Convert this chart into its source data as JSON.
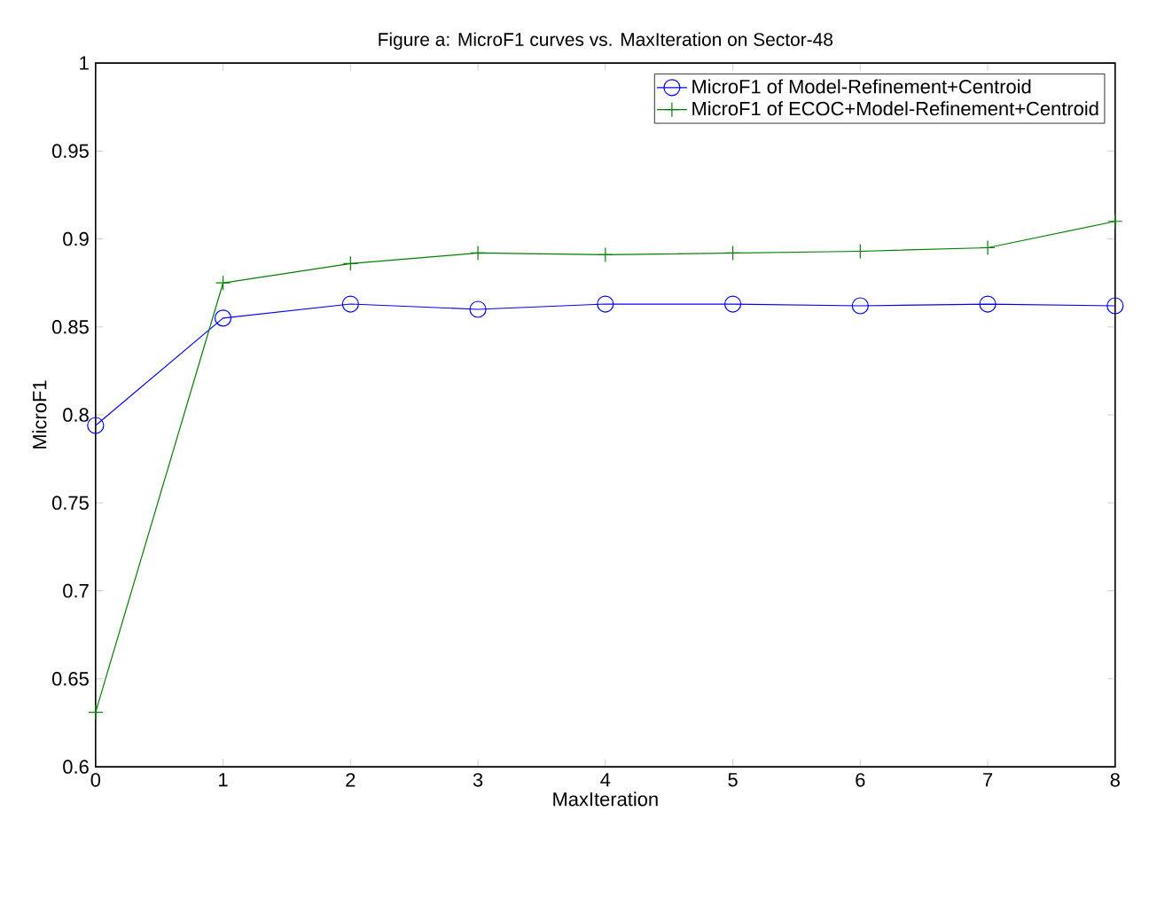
{
  "chart_data": {
    "type": "line",
    "title": "Figure a: MicroF1 curves vs. MaxIteration on Sector-48",
    "xlabel": "MaxIteration",
    "ylabel": "MicroF1",
    "x": [
      0,
      1,
      2,
      3,
      4,
      5,
      6,
      7,
      8
    ],
    "series": [
      {
        "name": "MicroF1 of Model-Refinement+Centroid",
        "color": "#0000ff",
        "marker": "circle",
        "values": [
          0.794,
          0.855,
          0.863,
          0.86,
          0.863,
          0.863,
          0.862,
          0.863,
          0.862
        ]
      },
      {
        "name": "MicroF1 of ECOC+Model-Refinement+Centroid",
        "color": "#008000",
        "marker": "cross",
        "values": [
          0.631,
          0.875,
          0.886,
          0.892,
          0.891,
          0.892,
          0.893,
          0.895,
          0.91
        ]
      }
    ],
    "xlim": [
      0,
      8
    ],
    "xticks": [
      0,
      1,
      2,
      3,
      4,
      5,
      6,
      7,
      8
    ],
    "ylim": [
      0.6,
      1
    ],
    "yticks": [
      0.6,
      0.65,
      0.7,
      0.75,
      0.8,
      0.85,
      0.9,
      0.95,
      1
    ],
    "grid": false,
    "legend": "top right",
    "line_style": "solid"
  }
}
